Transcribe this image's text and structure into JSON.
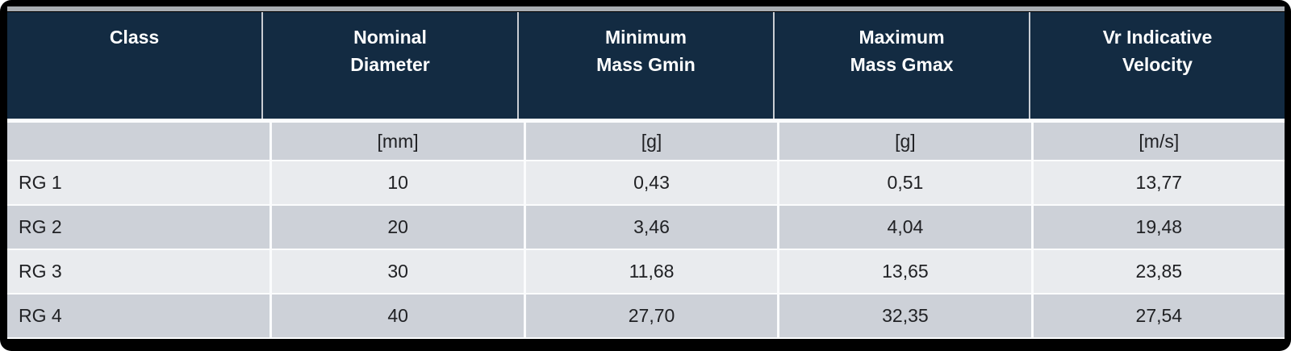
{
  "colors": {
    "frame": "#000000",
    "header_bg": "#132b42",
    "header_text": "#ffffff",
    "row_gray": "#cdd1d8",
    "row_light": "#e9ebee",
    "divider": "#fbfcfd",
    "top_bar": "#a9adb2",
    "body_text": "#202124"
  },
  "table": {
    "headers": [
      "Class",
      "Nominal\nDiameter",
      "Minimum\nMass Gmin",
      "Maximum\nMass Gmax",
      "Vr Indicative\nVelocity"
    ],
    "units": [
      "",
      "[mm]",
      "[g]",
      "[g]",
      "[m/s]"
    ],
    "rows": [
      {
        "cells": [
          "RG 1",
          "10",
          "0,43",
          "0,51",
          "13,77"
        ]
      },
      {
        "cells": [
          "RG 2",
          "20",
          "3,46",
          "4,04",
          "19,48"
        ]
      },
      {
        "cells": [
          "RG 3",
          "30",
          "11,68",
          "13,65",
          "23,85"
        ]
      },
      {
        "cells": [
          "RG 4",
          "40",
          "27,70",
          "32,35",
          "27,54"
        ]
      }
    ]
  },
  "chart_data": {
    "type": "table",
    "title": "",
    "columns": [
      "Class",
      "Nominal Diameter [mm]",
      "Minimum Mass Gmin [g]",
      "Maximum Mass Gmax [g]",
      "Vr Indicative Velocity [m/s]"
    ],
    "rows": [
      [
        "RG 1",
        10,
        0.43,
        0.51,
        13.77
      ],
      [
        "RG 2",
        20,
        3.46,
        4.04,
        19.48
      ],
      [
        "RG 3",
        30,
        11.68,
        13.65,
        23.85
      ],
      [
        "RG 4",
        40,
        27.7,
        32.35,
        27.54
      ]
    ],
    "notes_layout": "dark navy header row, unit row and data rows in alternating gray/light stripes, decimal comma formatting"
  }
}
